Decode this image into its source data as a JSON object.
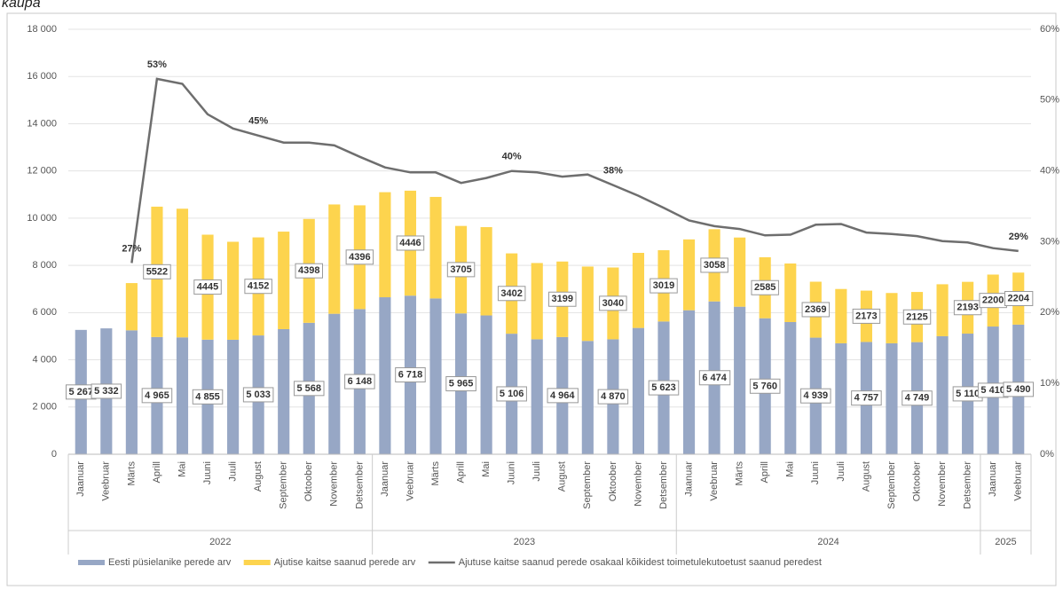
{
  "chart_data": {
    "type": "bar-line",
    "title": "kaupa",
    "groups": [
      {
        "label": "2022",
        "categories": [
          "Jaanuar",
          "Veebruar",
          "Märts",
          "Aprill",
          "Mai",
          "Juuni",
          "Juuli",
          "August",
          "September",
          "Oktoober",
          "November",
          "Detsember"
        ]
      },
      {
        "label": "2023",
        "categories": [
          "Jaanuar",
          "Veebruar",
          "Märts",
          "Aprill",
          "Mai",
          "Juuni",
          "Juuli",
          "August",
          "September",
          "Oktoober",
          "November",
          "Detsember"
        ]
      },
      {
        "label": "2024",
        "categories": [
          "Jaanuar",
          "Veebruar",
          "Märts",
          "Aprill",
          "Mai",
          "Juuni",
          "Juuli",
          "August",
          "September",
          "Oktoober",
          "November",
          "Detsember"
        ]
      },
      {
        "label": "2025",
        "categories": [
          "Jaanuar",
          "Veebruar"
        ]
      }
    ],
    "series": [
      {
        "name": "Eesti püsielanike perede arv",
        "color": "#97a7c5",
        "kind": "bar",
        "values": [
          5267,
          5332,
          5250,
          4965,
          4950,
          4855,
          4850,
          5033,
          5300,
          5568,
          5950,
          6148,
          6650,
          6718,
          6600,
          5965,
          5880,
          5106,
          4870,
          4964,
          4800,
          4870,
          5350,
          5623,
          6100,
          6474,
          6250,
          5760,
          5600,
          4939,
          4700,
          4757,
          4700,
          4749,
          5000,
          5110,
          5410,
          5490
        ],
        "value_labels": [
          "5 267",
          "5 332",
          null,
          "4 965",
          null,
          "4 855",
          null,
          "5 033",
          null,
          "5 568",
          null,
          "6 148",
          null,
          "6 718",
          null,
          "5 965",
          null,
          "5 106",
          null,
          "4 964",
          null,
          "4 870",
          null,
          "5 623",
          null,
          "6 474",
          null,
          "5 760",
          null,
          "4 939",
          null,
          "4 757",
          null,
          "4 749",
          null,
          "5 110",
          "5 410",
          "5 490"
        ]
      },
      {
        "name": "Ajutise kaitse saanud perede arv",
        "color": "#fdd44e",
        "kind": "bar",
        "values": [
          0,
          0,
          2000,
          5522,
          5450,
          4445,
          4150,
          4152,
          4130,
          4398,
          4630,
          4396,
          4450,
          4446,
          4300,
          3705,
          3740,
          3402,
          3230,
          3199,
          3150,
          3040,
          3180,
          3019,
          3000,
          3058,
          2930,
          2585,
          2480,
          2369,
          2300,
          2173,
          2130,
          2125,
          2200,
          2193,
          2200,
          2204
        ],
        "value_labels": [
          null,
          null,
          null,
          "5522",
          null,
          "4445",
          null,
          "4152",
          null,
          "4398",
          null,
          "4396",
          null,
          "4446",
          null,
          "3705",
          null,
          "3402",
          null,
          "3199",
          null,
          "3040",
          null,
          "3019",
          null,
          "3058",
          null,
          "2585",
          null,
          "2369",
          null,
          "2173",
          null,
          "2125",
          null,
          "2193",
          "2200",
          "2204"
        ]
      },
      {
        "name": "Ajutuse kaitse saanud perede osakaal kõikidest toimetulekutoetust saanud peredest",
        "color": "#6e6e6e",
        "kind": "line",
        "axis": "y2",
        "values": [
          null,
          null,
          27,
          53,
          52.3,
          48,
          46,
          45,
          44,
          44,
          43.6,
          42,
          40.5,
          39.8,
          39.8,
          38.3,
          39,
          40,
          39.8,
          39.2,
          39.5,
          38,
          36.5,
          34.8,
          33,
          32.2,
          31.8,
          30.9,
          31,
          32.4,
          32.5,
          31.3,
          31.1,
          30.8,
          30.1,
          29.9,
          29.1,
          28.7
        ],
        "value_labels": [
          null,
          null,
          "27%",
          "53%",
          null,
          null,
          null,
          "45%",
          null,
          null,
          null,
          null,
          null,
          null,
          null,
          null,
          null,
          "40%",
          null,
          null,
          null,
          "38%",
          null,
          null,
          null,
          null,
          null,
          null,
          null,
          null,
          null,
          null,
          null,
          null,
          null,
          null,
          null,
          "29%"
        ]
      }
    ],
    "ylim": [
      0,
      18000
    ],
    "yticks": [
      {
        "value": 0,
        "label": "0"
      },
      {
        "value": 2000,
        "label": "2 000"
      },
      {
        "value": 4000,
        "label": "4 000"
      },
      {
        "value": 6000,
        "label": "6 000"
      },
      {
        "value": 8000,
        "label": "8 000"
      },
      {
        "value": 10000,
        "label": "10 000"
      },
      {
        "value": 12000,
        "label": "12 000"
      },
      {
        "value": 14000,
        "label": "14 000"
      },
      {
        "value": 16000,
        "label": "16 000"
      },
      {
        "value": 18000,
        "label": "18 000"
      }
    ],
    "y2lim": [
      0,
      60
    ],
    "y2ticks": [
      {
        "value": 0,
        "label": "0%"
      },
      {
        "value": 10,
        "label": "10%"
      },
      {
        "value": 20,
        "label": "20%"
      },
      {
        "value": 30,
        "label": "30%"
      },
      {
        "value": 40,
        "label": "40%"
      },
      {
        "value": 50,
        "label": "50%"
      },
      {
        "value": 60,
        "label": "60%"
      }
    ],
    "grid": true,
    "legend": "bottom"
  }
}
